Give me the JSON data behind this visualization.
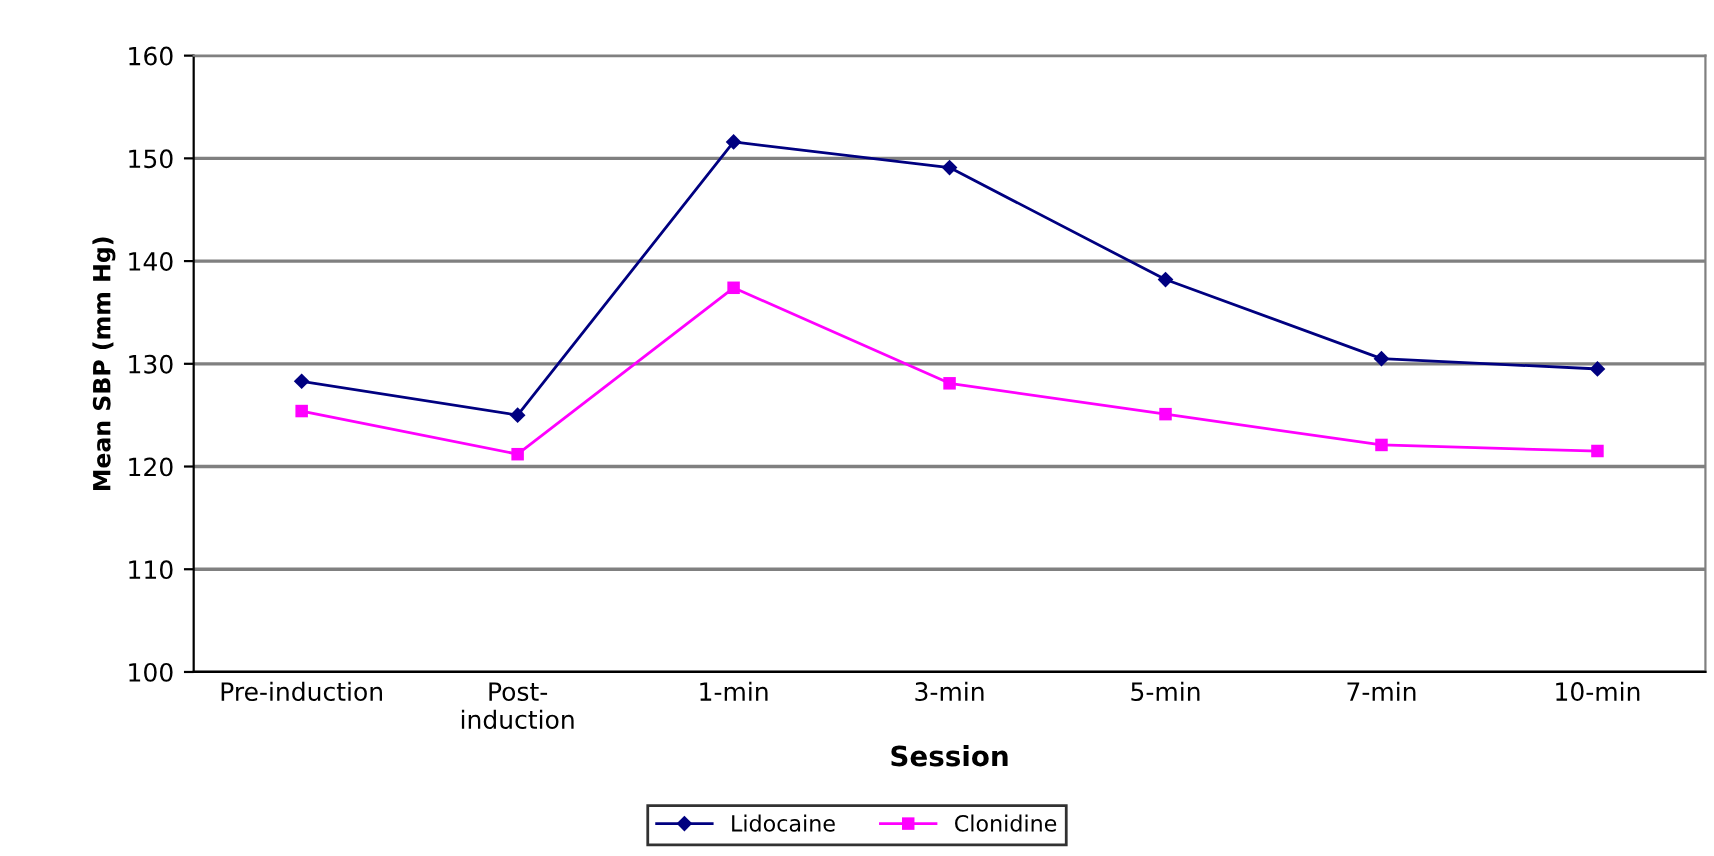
{
  "chart_data": {
    "type": "line",
    "xlabel": "Session",
    "ylabel": "Mean SBP (mm Hg)",
    "categories": [
      "Pre-induction",
      "Post-\ninduction",
      "1-min",
      "3-min",
      "5-min",
      "7-min",
      "10-min"
    ],
    "series": [
      {
        "name": "Lidocaine",
        "color": "#000080",
        "marker": "diamond",
        "values": [
          128.3,
          125.0,
          151.6,
          149.1,
          138.2,
          130.5,
          129.5
        ]
      },
      {
        "name": "Clonidine",
        "color": "#ff00ff",
        "marker": "square",
        "values": [
          125.4,
          121.2,
          137.4,
          128.1,
          125.1,
          122.1,
          121.5
        ]
      }
    ],
    "ylim": [
      100,
      160
    ],
    "yticks": [
      100,
      110,
      120,
      130,
      140,
      150,
      160
    ],
    "grid": "y",
    "legend": "bottom",
    "line_style": "solid"
  }
}
